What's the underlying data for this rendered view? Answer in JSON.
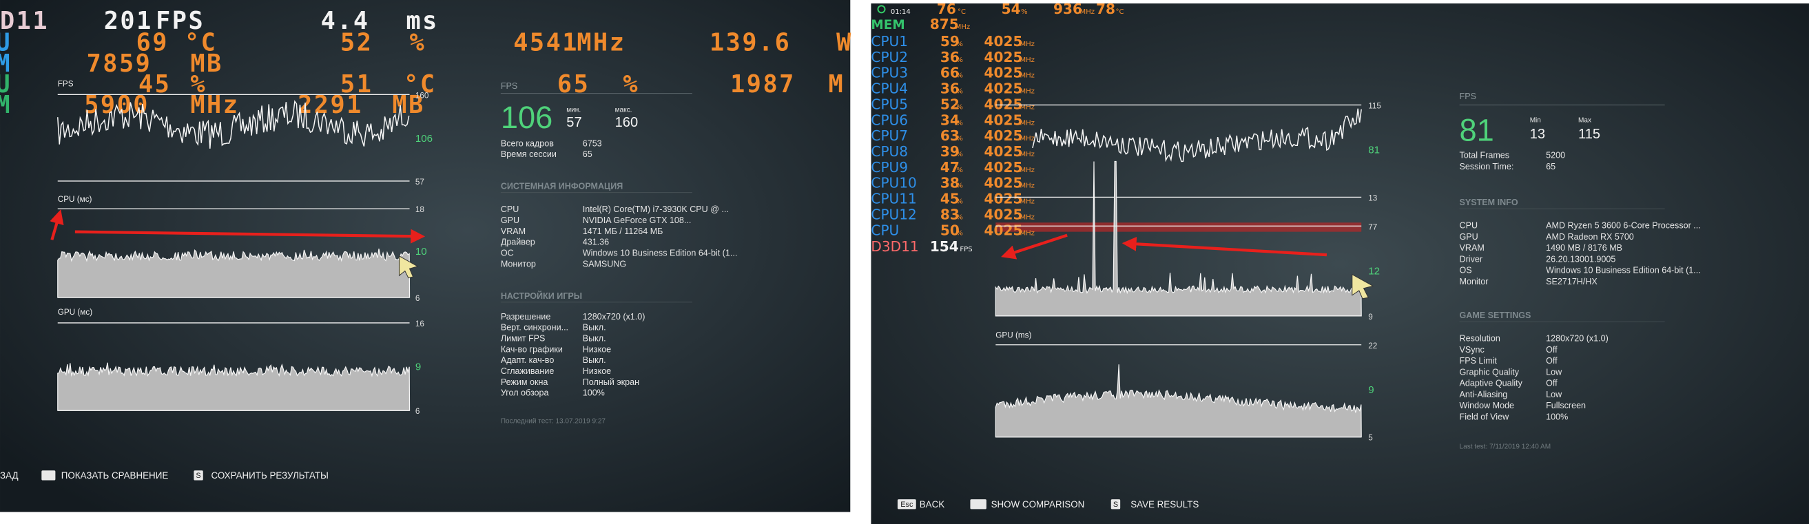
{
  "left": {
    "osd": [
      [
        "D11",
        "201",
        "FPS",
        "4.4",
        "ms"
      ],
      [
        "U",
        "69",
        "°C",
        "52",
        "%",
        "4541",
        "MHz",
        "139.6",
        "W"
      ],
      [
        "M",
        "7859",
        "MB"
      ],
      [
        "U",
        "45",
        "%",
        "51",
        "°C",
        "65",
        "%",
        "1987",
        "M"
      ],
      [
        "M",
        "5900",
        "MHz",
        "2291",
        "MB"
      ]
    ],
    "graphs": [
      {
        "label": "FPS",
        "ticks": [
          "160",
          "106",
          "57"
        ]
      },
      {
        "label": "CPU (мс)",
        "ticks": [
          "18",
          "10",
          "6"
        ]
      },
      {
        "label": "GPU (мс)",
        "ticks": [
          "16",
          "9",
          "6"
        ]
      }
    ],
    "stats": {
      "label": "FPS",
      "avg": "106",
      "min_label": "мин.",
      "min": "57",
      "max_label": "макс.",
      "max": "160",
      "rows": [
        [
          "Всего кадров",
          "6753"
        ],
        [
          "Время сессии",
          "65"
        ]
      ]
    },
    "sections": [
      {
        "title": "СИСТЕМНАЯ ИНФОРМАЦИЯ",
        "rows": [
          [
            "CPU",
            "Intel(R) Core(TM) i7-3930K CPU @ ..."
          ],
          [
            "GPU",
            "NVIDIA GeForce GTX 108..."
          ],
          [
            "VRAM",
            "1471 МБ / 11264 МБ"
          ],
          [
            "Драйвер",
            "431.36"
          ],
          [
            "ОС",
            "Windows 10 Business Edition 64-bit (1..."
          ],
          [
            "Монитор",
            "SAMSUNG"
          ]
        ]
      },
      {
        "title": "НАСТРОЙКИ ИГРЫ",
        "rows": [
          [
            "Разрешение",
            "1280x720 (x1.0)"
          ],
          [
            "Верт. синхрони...",
            "Выкл."
          ],
          [
            "Лимит FPS",
            "Выкл."
          ],
          [
            "Кач-во графики",
            "Низкое"
          ],
          [
            "Адапт. кач-во",
            "Выкл."
          ],
          [
            "Сглаживание",
            "Низкое"
          ],
          [
            "Режим окна",
            "Полный экран"
          ],
          [
            "Угол обзора",
            "100%"
          ]
        ]
      }
    ],
    "last_test": "Последний тест: 13.07.2019 9:27",
    "footer": [
      {
        "label": "ЗАД"
      },
      {
        "label": "ПОКАЗАТЬ СРАВНЕНИЕ"
      },
      {
        "key": "S",
        "label": "СОХРАНИТЬ РЕЗУЛЬТАТЫ"
      }
    ]
  },
  "right": {
    "osd": {
      "top": [
        "01:14",
        "76",
        "°C",
        "54",
        "%",
        "936",
        "MHz",
        "78",
        "°C"
      ],
      "mem": [
        "MEM",
        "875",
        "MHz"
      ],
      "cpus": [
        [
          "CPU1",
          "59",
          "%",
          "4025",
          "MHz"
        ],
        [
          "CPU2",
          "36",
          "%",
          "4025",
          "MHz"
        ],
        [
          "CPU3",
          "66",
          "%",
          "4025",
          "MHz"
        ],
        [
          "CPU4",
          "36",
          "%",
          "4025",
          "MHz"
        ],
        [
          "CPU5",
          "52",
          "%",
          "4025",
          "MHz"
        ],
        [
          "CPU6",
          "34",
          "%",
          "4025",
          "MHz"
        ],
        [
          "CPU7",
          "63",
          "%",
          "4025",
          "MHz"
        ],
        [
          "CPU8",
          "39",
          "%",
          "4025",
          "MHz"
        ],
        [
          "CPU9",
          "47",
          "%",
          "4025",
          "MHz"
        ],
        [
          "CPU10",
          "38",
          "%",
          "4025",
          "MHz"
        ],
        [
          "CPU11",
          "45",
          "%",
          "4025",
          "MHz"
        ],
        [
          "CPU12",
          "83",
          "%",
          "4025",
          "MHz"
        ],
        [
          "CPU",
          "50",
          "%",
          "4025",
          "MHz"
        ]
      ],
      "api": [
        "D3D11",
        "154",
        "FPS"
      ]
    },
    "graphs": [
      {
        "ticks": [
          "115",
          "81",
          "13"
        ]
      },
      {
        "ticks": [
          "77",
          "12",
          "9"
        ]
      },
      {
        "label": "GPU (ms)",
        "ticks": [
          "22",
          "9",
          "5"
        ]
      }
    ],
    "stats": {
      "label": "FPS",
      "avg": "81",
      "min_label": "Min",
      "min": "13",
      "max_label": "Max",
      "max": "115",
      "rows": [
        [
          "Total Frames",
          "5200"
        ],
        [
          "Session Time:",
          "65"
        ]
      ]
    },
    "sections": [
      {
        "title": "SYSTEM INFO",
        "rows": [
          [
            "CPU",
            "AMD Ryzen 5 3600 6-Core Processor ..."
          ],
          [
            "GPU",
            "AMD Radeon RX 5700"
          ],
          [
            "VRAM",
            "1490 MB / 8176 MB"
          ],
          [
            "Driver",
            "26.20.13001.9005"
          ],
          [
            "OS",
            "Windows 10 Business Edition 64-bit (1..."
          ],
          [
            "Monitor",
            "SE2717H/HX"
          ]
        ]
      },
      {
        "title": "GAME SETTINGS",
        "rows": [
          [
            "Resolution",
            "1280x720 (x1.0)"
          ],
          [
            "VSync",
            "Off"
          ],
          [
            "FPS Limit",
            "Off"
          ],
          [
            "Graphic Quality",
            "Low"
          ],
          [
            "Adaptive Quality",
            "Off"
          ],
          [
            "Anti-Aliasing",
            "Low"
          ],
          [
            "Window Mode",
            "Fullscreen"
          ],
          [
            "Field of View",
            "100%"
          ]
        ]
      }
    ],
    "last_test": "Last test: 7/11/2019 12:40 AM",
    "footer": [
      {
        "key": "Esc",
        "label": "BACK"
      },
      {
        "label": "SHOW COMPARISON"
      },
      {
        "key": "S",
        "label": "SAVE RESULTS"
      }
    ]
  }
}
